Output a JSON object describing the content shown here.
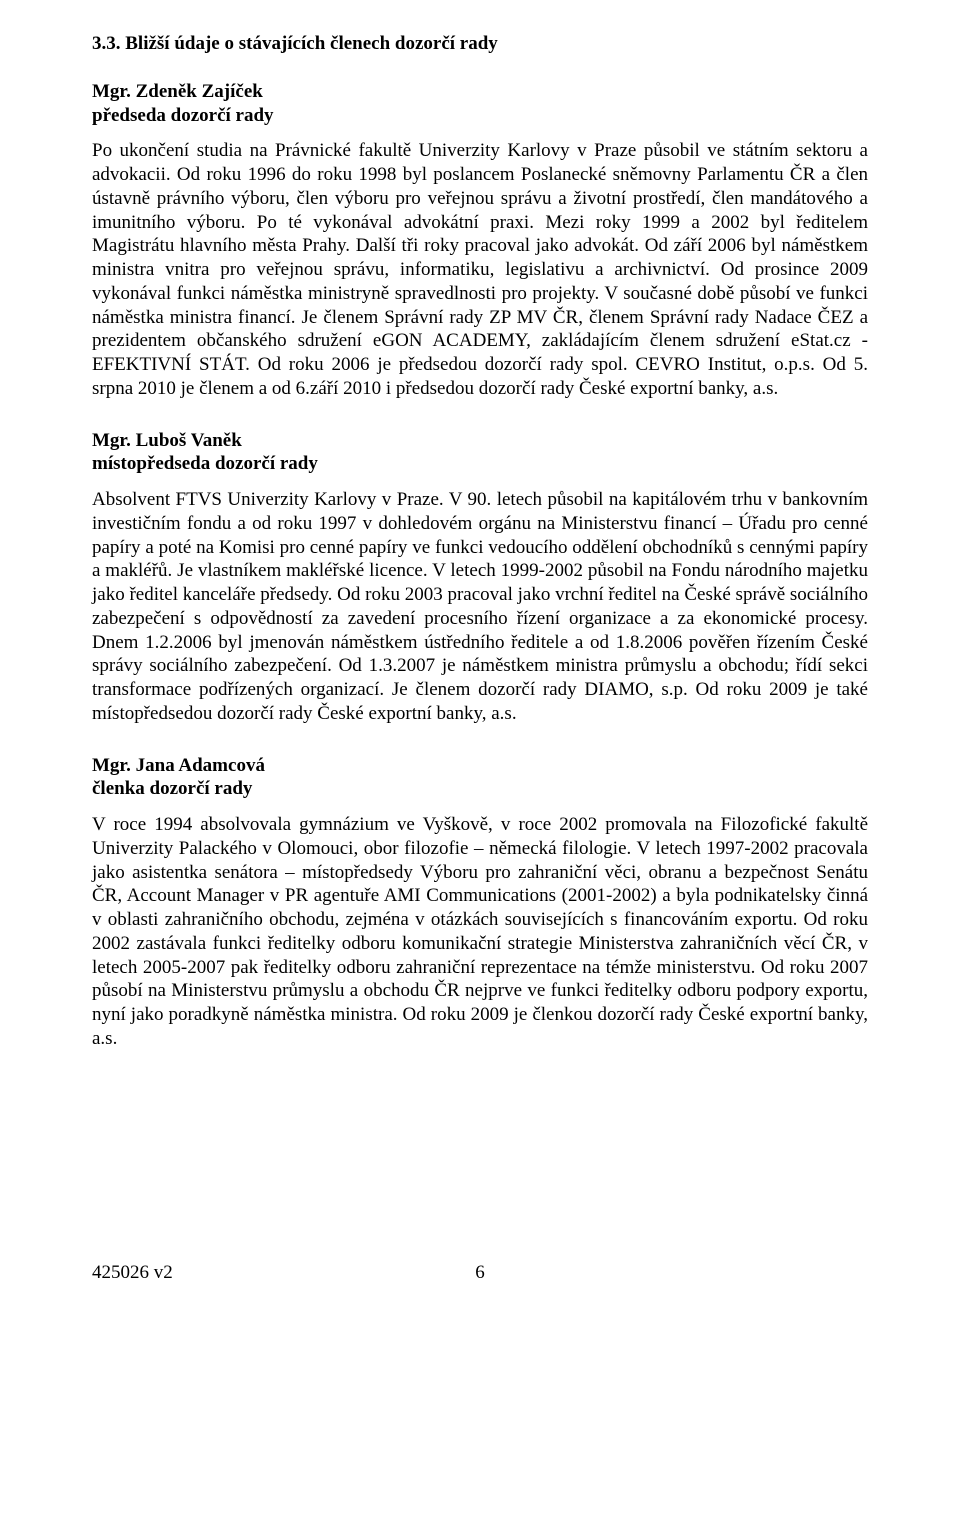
{
  "section": {
    "heading": "3.3. Bližší údaje o stávajících členech dozorčí rady"
  },
  "people": [
    {
      "name": "Mgr. Zdeněk Zajíček",
      "role": "předseda dozorčí rady",
      "bio": "Po ukončení studia na Právnické fakultě Univerzity Karlovy v Praze působil ve státním sektoru a advokacii. Od roku 1996 do roku 1998 byl poslancem Poslanecké sněmovny Parlamentu ČR a člen ústavně právního výboru, člen výboru pro veřejnou správu a životní prostředí, člen mandátového a imunitního výboru. Po té vykonával advokátní praxi. Mezi roky 1999 a 2002 byl ředitelem Magistrátu hlavního města Prahy. Další tři roky pracoval jako advokát. Od září 2006 byl náměstkem ministra vnitra pro veřejnou správu, informatiku, legislativu a archivnictví. Od prosince 2009 vykonával funkci náměstka ministryně spravedlnosti pro projekty. V současné době působí ve funkci náměstka ministra financí. Je členem Správní rady ZP MV ČR, členem Správní rady Nadace ČEZ a prezidentem občanského sdružení eGON ACADEMY, zakládajícím členem sdružení eStat.cz - EFEKTIVNÍ STÁT. Od roku 2006 je předsedou dozorčí rady spol. CEVRO Institut, o.p.s. Od 5. srpna 2010 je členem a od 6.září 2010 i předsedou dozorčí rady České exportní banky, a.s."
    },
    {
      "name": "Mgr. Luboš Vaněk",
      "role": "místopředseda dozorčí rady",
      "bio": "Absolvent FTVS Univerzity Karlovy v Praze. V 90. letech působil na kapitálovém trhu v bankovním investičním fondu a od roku 1997 v dohledovém orgánu na Ministerstvu financí – Úřadu pro cenné papíry a poté na Komisi pro cenné papíry ve funkci vedoucího oddělení obchodníků s cennými papíry a makléřů. Je vlastníkem makléřské licence. V letech 1999-2002 působil na Fondu národního majetku jako ředitel kanceláře předsedy. Od roku 2003 pracoval jako vrchní ředitel na České správě sociálního zabezpečení s odpovědností za zavedení procesního řízení organizace a za ekonomické procesy. Dnem 1.2.2006 byl jmenován náměstkem ústředního ředitele a od 1.8.2006 pověřen řízením České správy sociálního zabezpečení. Od 1.3.2007 je náměstkem ministra průmyslu a obchodu; řídí sekci transformace podřízených organizací. Je členem dozorčí rady DIAMO, s.p. Od roku 2009 je také místopředsedou dozorčí rady České exportní banky, a.s."
    },
    {
      "name": "Mgr. Jana Adamcová",
      "role": "členka dozorčí rady",
      "bio": "V roce 1994 absolvovala gymnázium ve Vyškově, v roce 2002 promovala na Filozofické fakultě Univerzity Palackého v Olomouci, obor filozofie – německá filologie. V letech 1997-2002 pracovala jako asistentka senátora – místopředsedy Výboru pro zahraniční věci, obranu a bezpečnost Senátu ČR, Account Manager v PR agentuře AMI Communications (2001-2002) a byla podnikatelsky činná v oblasti zahraničního obchodu, zejména v otázkách souvisejících s financováním exportu. Od roku 2002 zastávala funkci ředitelky odboru komunikační strategie Ministerstva zahraničních věcí ČR, v letech 2005-2007 pak ředitelky odboru zahraniční reprezentace na témže ministerstvu. Od roku 2007 působí na Ministerstvu průmyslu a obchodu ČR nejprve ve funkci ředitelky odboru podpory exportu, nyní jako poradkyně náměstka ministra. Od roku 2009 je členkou dozorčí rady České exportní banky, a.s."
    }
  ],
  "footer": {
    "left": "425026 v2",
    "page": "6"
  }
}
